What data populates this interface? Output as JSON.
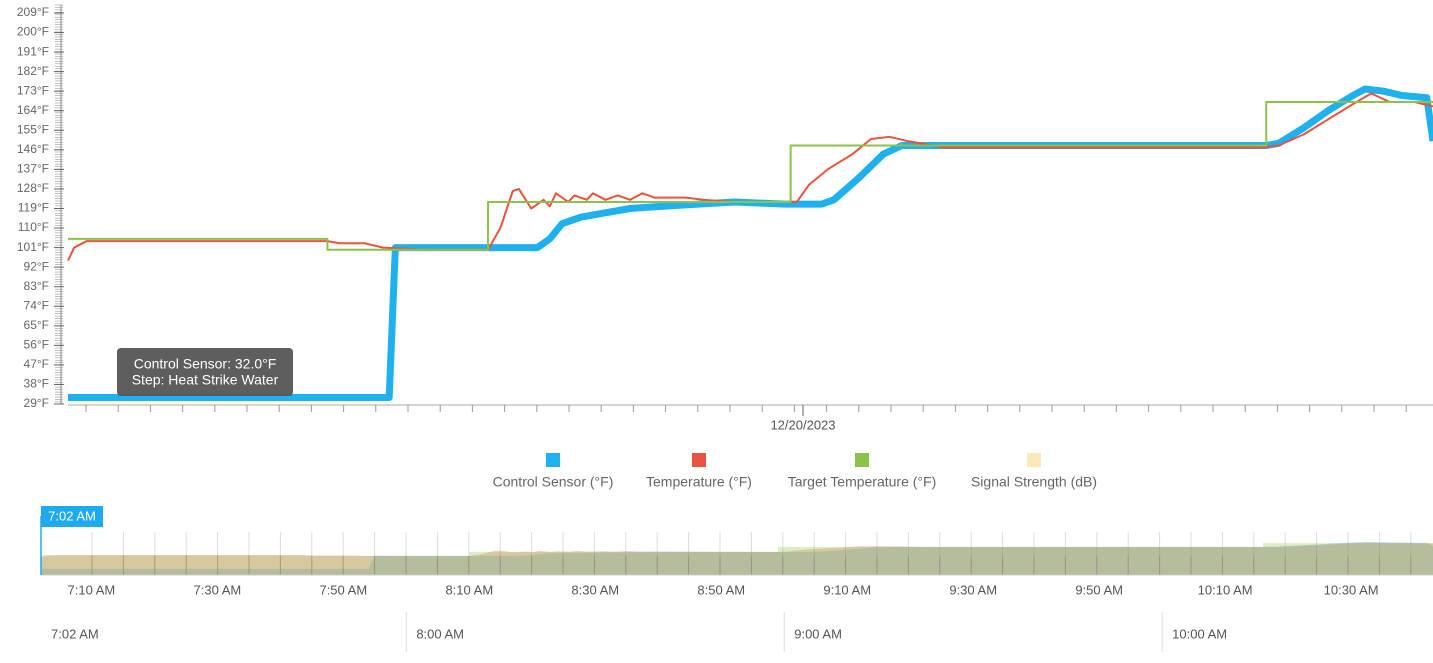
{
  "chart_data": {
    "type": "line",
    "date_label": "12/20/2023",
    "xlim": [
      "7:02 AM",
      "10:43 AM"
    ],
    "ylim": [
      29,
      209
    ],
    "yticks": [
      {
        "value": 29,
        "label": "29°F"
      },
      {
        "value": 38,
        "label": "38°F"
      },
      {
        "value": 47,
        "label": "47°F"
      },
      {
        "value": 56,
        "label": "56°F"
      },
      {
        "value": 65,
        "label": "65°F"
      },
      {
        "value": 74,
        "label": "74°F"
      },
      {
        "value": 83,
        "label": "83°F"
      },
      {
        "value": 92,
        "label": "92°F"
      },
      {
        "value": 101,
        "label": "101°F"
      },
      {
        "value": 110,
        "label": "110°F"
      },
      {
        "value": 119,
        "label": "119°F"
      },
      {
        "value": 128,
        "label": "128°F"
      },
      {
        "value": 137,
        "label": "137°F"
      },
      {
        "value": 146,
        "label": "146°F"
      },
      {
        "value": 155,
        "label": "155°F"
      },
      {
        "value": 164,
        "label": "164°F"
      },
      {
        "value": 173,
        "label": "173°F"
      },
      {
        "value": 182,
        "label": "182°F"
      },
      {
        "value": 191,
        "label": "191°F"
      },
      {
        "value": 200,
        "label": "200°F"
      },
      {
        "value": 209,
        "label": "209°F"
      }
    ],
    "series": [
      {
        "name": "Control Sensor (°F)",
        "color": "#1eb1ee",
        "width": 7,
        "x": [
          "7:02 AM",
          "7:54 AM",
          "7:55 AM",
          "8:18 AM",
          "8:20 AM",
          "8:22 AM",
          "8:25 AM",
          "8:29 AM",
          "8:33 AM",
          "8:38 AM",
          "8:44 AM",
          "8:50 AM",
          "8:58 AM",
          "9:04 AM",
          "9:06 AM",
          "9:10 AM",
          "9:14 AM",
          "9:17 AM",
          "9:20 AM",
          "9:30 AM",
          "9:40 AM",
          "9:50 AM",
          "10:00 AM",
          "10:10 AM",
          "10:16 AM",
          "10:18 AM",
          "10:22 AM",
          "10:26 AM",
          "10:30 AM",
          "10:32 AM",
          "10:35 AM",
          "10:38 AM",
          "10:42 AM",
          "10:43 AM"
        ],
        "values": [
          32,
          32,
          101,
          101,
          105,
          112,
          115,
          117,
          119,
          120,
          121,
          122,
          121,
          121,
          123,
          133,
          144,
          148,
          148,
          148,
          148,
          148,
          148,
          148,
          148,
          149,
          156,
          164,
          171,
          174,
          173,
          171,
          170,
          150
        ]
      },
      {
        "name": "Temperature (°F)",
        "color": "#e8533f",
        "width": 2,
        "x": [
          "7:02 AM",
          "7:03 AM",
          "7:05 AM",
          "7:15 AM",
          "7:25 AM",
          "7:35 AM",
          "7:44 AM",
          "7:46 AM",
          "7:50 AM",
          "7:53 AM",
          "8:00 AM",
          "8:10 AM",
          "8:12 AM",
          "8:14 AM",
          "8:15 AM",
          "8:17 AM",
          "8:19 AM",
          "8:20 AM",
          "8:21 AM",
          "8:23 AM",
          "8:24 AM",
          "8:26 AM",
          "8:27 AM",
          "8:29 AM",
          "8:31 AM",
          "8:33 AM",
          "8:35 AM",
          "8:37 AM",
          "8:42 AM",
          "8:45 AM",
          "8:50 AM",
          "8:55 AM",
          "9:00 AM",
          "9:02 AM",
          "9:05 AM",
          "9:09 AM",
          "9:12 AM",
          "9:15 AM",
          "9:18 AM",
          "9:24 AM",
          "9:40 AM",
          "10:00 AM",
          "10:15 AM",
          "10:18 AM",
          "10:22 AM",
          "10:26 AM",
          "10:30 AM",
          "10:33 AM",
          "10:36 AM",
          "10:40 AM",
          "10:43 AM"
        ],
        "values": [
          95,
          101,
          104,
          104,
          104,
          104,
          104,
          103,
          103,
          101,
          100,
          100,
          110,
          127,
          128,
          119,
          123,
          120,
          126,
          122,
          125,
          123,
          126,
          123,
          125,
          123,
          126,
          124,
          124,
          123,
          122,
          122,
          122,
          130,
          137,
          144,
          151,
          152,
          150,
          147,
          147,
          147,
          147,
          148,
          153,
          160,
          167,
          172,
          168,
          168,
          166
        ]
      },
      {
        "name": "Target Temperature (°F)",
        "color": "#8bc34a",
        "width": 2,
        "x": [
          "7:02 AM",
          "7:44 AM",
          "7:44 AM",
          "8:10 AM",
          "8:10 AM",
          "8:59 AM",
          "8:59 AM",
          "10:16 AM",
          "10:16 AM",
          "10:43 AM"
        ],
        "values": [
          105,
          105,
          100,
          100,
          122,
          122,
          148,
          148,
          168,
          168
        ]
      },
      {
        "name": "Signal Strength (dB)",
        "color": "#fbe9b7",
        "hidden": true
      }
    ],
    "tooltip": [
      "Control Sensor: 32.0°F",
      "Step: Heat Strike Water"
    ],
    "navigator": {
      "badge": "7:02 AM",
      "ticks": [
        "7:10 AM",
        "7:30 AM",
        "7:50 AM",
        "8:10 AM",
        "8:30 AM",
        "8:50 AM",
        "9:10 AM",
        "9:30 AM",
        "9:50 AM",
        "10:10 AM",
        "10:30 AM"
      ],
      "major_ticks": [
        "7:02 AM",
        "8:00 AM",
        "9:00 AM",
        "10:00 AM"
      ]
    }
  }
}
